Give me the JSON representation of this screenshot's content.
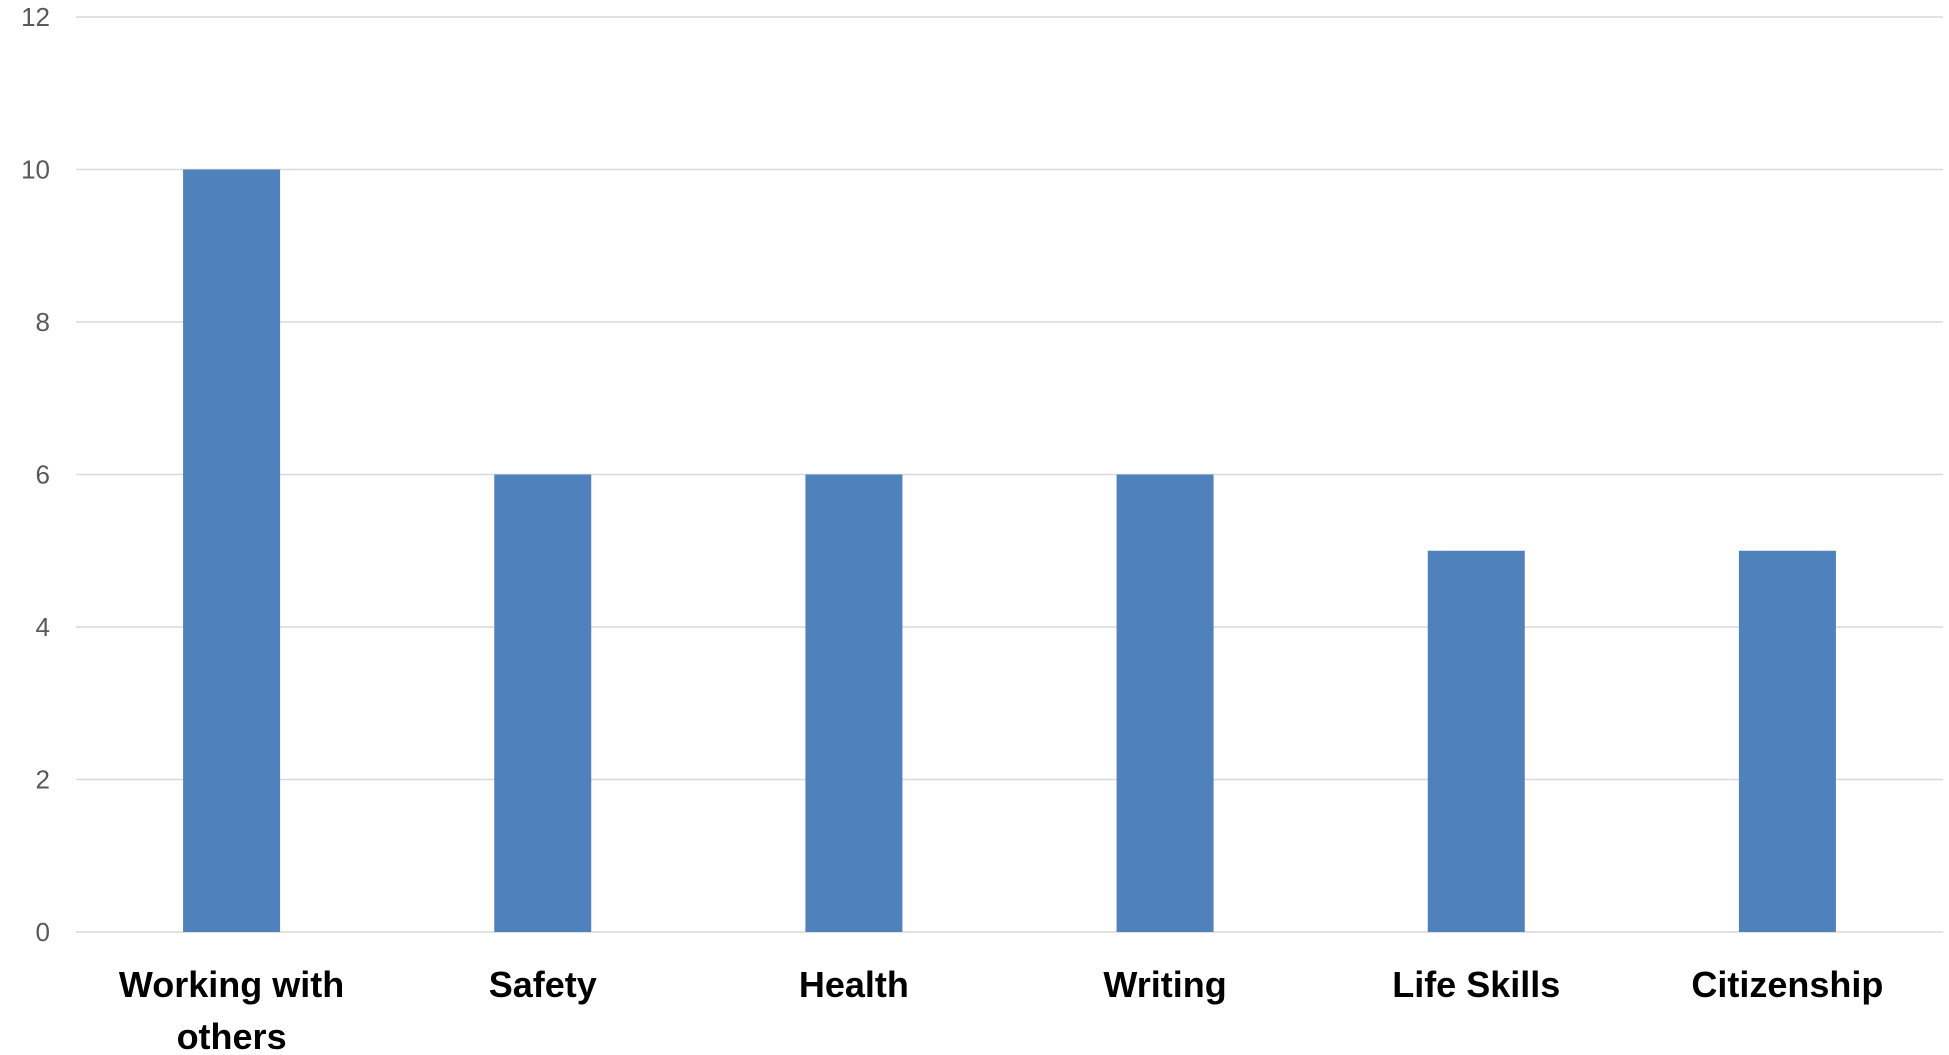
{
  "chart_data": {
    "type": "bar",
    "categories": [
      "Working with others",
      "Safety",
      "Health",
      "Writing",
      "Life Skills",
      "Citizenship"
    ],
    "category_label_lines": [
      [
        "Working with",
        "others"
      ],
      [
        "Safety"
      ],
      [
        "Health"
      ],
      [
        "Writing"
      ],
      [
        "Life Skills"
      ],
      [
        "Citizenship"
      ]
    ],
    "values": [
      10,
      6,
      6,
      6,
      5,
      5
    ],
    "ylim": [
      0,
      12
    ],
    "yticks": [
      "0",
      "2",
      "4",
      "6",
      "8",
      "10",
      "12"
    ],
    "grid": true,
    "bar_color": "#4F81BD",
    "title": "",
    "xlabel": "",
    "ylabel": ""
  }
}
